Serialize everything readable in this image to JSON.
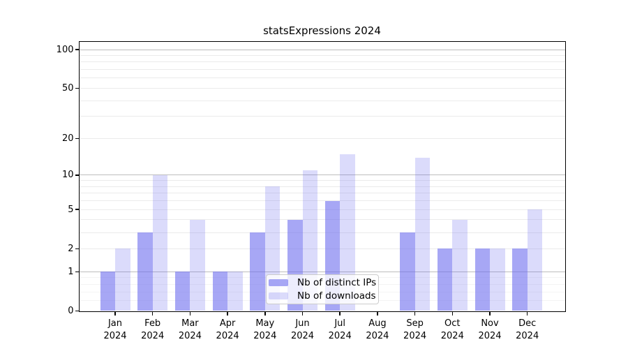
{
  "chart_data": {
    "type": "bar",
    "title": "statsExpressions 2024",
    "categories": [
      "Jan",
      "Feb",
      "Mar",
      "Apr",
      "May",
      "Jun",
      "Jul",
      "Aug",
      "Sep",
      "Oct",
      "Nov",
      "Dec"
    ],
    "category_year": "2024",
    "series": [
      {
        "name": "Nb of distinct IPs",
        "color": "rgba(104,104,238,0.58)",
        "values": [
          1,
          3,
          1,
          1,
          3,
          4,
          6,
          0,
          3,
          2,
          2,
          2
        ]
      },
      {
        "name": "Nb of downloads",
        "color": "rgba(104,104,238,0.24)",
        "values": [
          2,
          10,
          4,
          1,
          8,
          11,
          15,
          0,
          14,
          4,
          2,
          5
        ]
      }
    ],
    "yscale": "symlog",
    "ylim": [
      0,
      115
    ],
    "y_ticks": [
      0,
      1,
      2,
      5,
      10,
      20,
      50,
      100
    ],
    "y_minor_gridlines": [
      0.2,
      0.4,
      0.6,
      0.8,
      3,
      4,
      6,
      7,
      8,
      9,
      30,
      40,
      60,
      70,
      80,
      90
    ],
    "y_major_gridlines": [
      1,
      10,
      100
    ],
    "grid": true,
    "legend_position": "inside-bottom-center"
  },
  "legend": {
    "items": [
      "Nb of distinct IPs",
      "Nb of downloads"
    ]
  },
  "colors": {
    "background": "#ffffff",
    "bar_distinct_ips_on_white": "#a8a8f6",
    "bar_downloads_on_white": "#dbdbfa",
    "major_gridline": "#bdbdbd",
    "minor_gridline": "#ebebeb",
    "faint_gridline": "#f4f4f4",
    "axis": "#000000",
    "legend_border": "#cccccc",
    "text": "#000000"
  }
}
